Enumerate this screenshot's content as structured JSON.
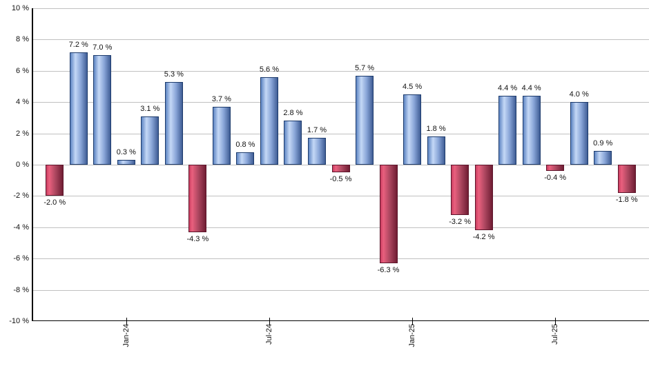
{
  "chart_data": {
    "type": "bar",
    "title": "",
    "unit": "%",
    "grid": true,
    "y_axis": {
      "min": -10,
      "max": 10,
      "tick_step": 2,
      "tick_labels": [
        "10 %",
        "8 %",
        "6 %",
        "4 %",
        "2 %",
        "0 %",
        "-2 %",
        "-4 %",
        "-6 %",
        "-8 %",
        "-10 %"
      ]
    },
    "x_axis": {
      "tick_labels": [
        "Jan-24",
        "Jul-24",
        "Jan-25",
        "Jul-25"
      ],
      "tick_indices": [
        3,
        9,
        15,
        21
      ]
    },
    "values": [
      -2.0,
      7.2,
      7.0,
      0.3,
      3.1,
      5.3,
      -4.3,
      3.7,
      0.8,
      5.6,
      2.8,
      1.7,
      -0.5,
      5.7,
      -6.3,
      4.5,
      1.8,
      -3.2,
      -4.2,
      4.4,
      4.4,
      -0.4,
      4.0,
      0.9,
      -1.8
    ],
    "value_labels": [
      "-2.0 %",
      "7.2 %",
      "7.0 %",
      "0.3 %",
      "3.1 %",
      "5.3 %",
      "-4.3 %",
      "3.7 %",
      "0.8 %",
      "5.6 %",
      "2.8 %",
      "1.7 %",
      "-0.5 %",
      "5.7 %",
      "-6.3 %",
      "4.5 %",
      "1.8 %",
      "-3.2 %",
      "-4.2 %",
      "4.4 %",
      "4.4 %",
      "-0.4 %",
      "4.0 %",
      "0.9 %",
      "-1.8 %"
    ],
    "colors": {
      "positive_bar_border": "#1c3a6b",
      "negative_bar_border": "#5c142a",
      "positive_gradient": [
        "#5d84c2 0%",
        "#c4d8f6 30%",
        "#8aa6d8 62%",
        "#3f5d95 100%"
      ],
      "negative_gradient": [
        "#c93d60 0%",
        "#ea607e 18%",
        "#ad4760 55%",
        "#701d33 100%"
      ],
      "gridline": "#c0c0c0",
      "axis": "#000000",
      "label_text": "#111111"
    }
  }
}
